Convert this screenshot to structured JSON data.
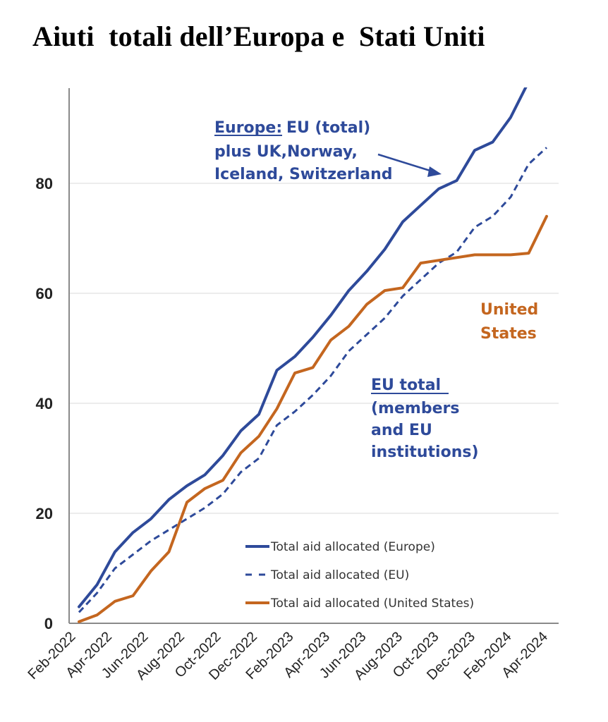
{
  "title": "Aiuti  totali dell’Europa e  Stati Uniti",
  "colors": {
    "europe": "#2E4A9A",
    "eu": "#2E4A9A",
    "us": "#C4661F",
    "axis": "#8a8a8a",
    "grid": "#d9d9d9"
  },
  "chart_data": {
    "type": "line",
    "title": "",
    "xlabel": "",
    "ylabel": "",
    "ylim": [
      0,
      100
    ],
    "grid": true,
    "legend_position": "bottom-right",
    "yticks": [
      "0",
      "20",
      "40",
      "60",
      "80"
    ],
    "xticks": [
      "Feb-2022",
      "Apr-2022",
      "Jun-2022",
      "Aug-2022",
      "Oct-2022",
      "Dec-2022",
      "Feb-2023",
      "Apr-2023",
      "Jun-2023",
      "Aug-2023",
      "Oct-2023",
      "Dec-2023",
      "Feb-2024",
      "Apr-2024"
    ],
    "x": [
      "Feb-2022",
      "Mar-2022",
      "Apr-2022",
      "May-2022",
      "Jun-2022",
      "Jul-2022",
      "Aug-2022",
      "Sep-2022",
      "Oct-2022",
      "Nov-2022",
      "Dec-2022",
      "Jan-2023",
      "Feb-2023",
      "Mar-2023",
      "Apr-2023",
      "May-2023",
      "Jun-2023",
      "Jul-2023",
      "Aug-2023",
      "Sep-2023",
      "Oct-2023",
      "Nov-2023",
      "Dec-2023",
      "Jan-2024",
      "Feb-2024",
      "Mar-2024",
      "Apr-2024"
    ],
    "series": [
      {
        "name": "Total aid allocated (Europe)",
        "style": "solid",
        "values": [
          3,
          7,
          13,
          16.5,
          19,
          22.5,
          25,
          27,
          30.5,
          35,
          38,
          46,
          48.5,
          52,
          56,
          60.5,
          64,
          68,
          73,
          76,
          79,
          80.5,
          86,
          87.5,
          92,
          98.5,
          null
        ]
      },
      {
        "name": "Total aid allocated (EU)",
        "style": "dashed",
        "values": [
          2,
          5.5,
          10,
          12.5,
          15,
          17,
          19,
          21,
          23.5,
          27.5,
          30,
          36,
          38.5,
          41.5,
          45,
          49.5,
          52.5,
          55.5,
          59.5,
          62.5,
          65.5,
          67.5,
          72,
          74,
          77.5,
          83.5,
          86.5
        ]
      },
      {
        "name": "Total aid allocated (United States)",
        "style": "solid",
        "values": [
          0.3,
          1.5,
          4,
          5,
          9.5,
          13,
          22,
          24.5,
          26,
          31,
          34,
          39,
          45.5,
          46.5,
          51.5,
          54,
          58,
          60.5,
          61,
          65.5,
          66,
          66.5,
          67,
          67,
          67,
          67.3,
          74
        ]
      }
    ],
    "annotations": {
      "europe_label": "Europe:",
      "europe_text": [
        "EU (total)",
        "plus UK,Norway,",
        "Iceland, Switzerland"
      ],
      "us_text": [
        "United",
        "States"
      ],
      "eu_label": "EU total",
      "eu_text": [
        "(members",
        "and EU",
        "institutions)"
      ]
    }
  }
}
